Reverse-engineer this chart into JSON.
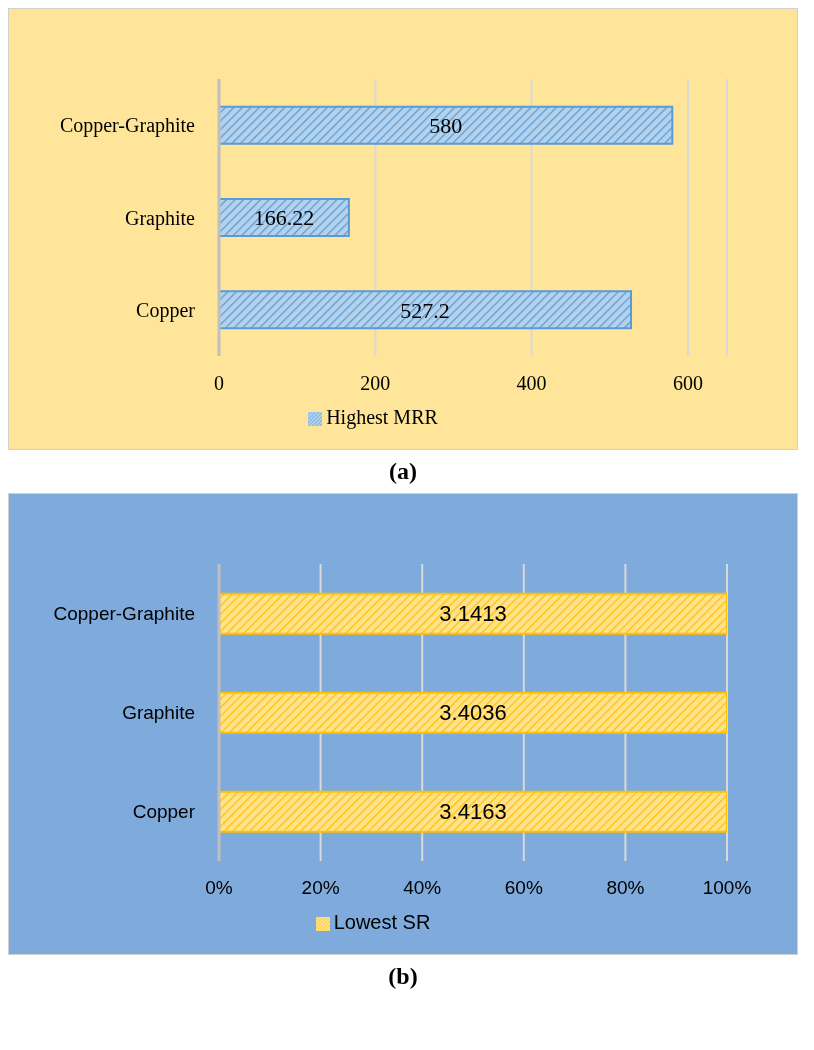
{
  "chart_data": [
    {
      "type": "bar",
      "orientation": "horizontal",
      "categories": [
        "Copper-Graphite",
        "Graphite",
        "Copper"
      ],
      "series": [
        {
          "name": "Highest MRR",
          "color": "#5b9bd5",
          "values": [
            580,
            166.22,
            527.2
          ]
        }
      ],
      "xlim": [
        0,
        650
      ],
      "xticks": [
        0,
        200,
        400,
        600
      ],
      "grid": "x",
      "legend": "bottom",
      "data_labels": true,
      "annotations": [
        "(a)"
      ]
    },
    {
      "type": "bar",
      "orientation": "horizontal",
      "categories": [
        "Copper-Graphite",
        "Graphite",
        "Copper"
      ],
      "series": [
        {
          "name": "Lowest SR",
          "color": "#ffc000",
          "values": [
            100,
            100,
            100
          ]
        }
      ],
      "xlim": [
        0,
        100
      ],
      "xticks": [
        {
          "value": 0,
          "label": "0%"
        },
        {
          "value": 20,
          "label": "20%"
        },
        {
          "value": 40,
          "label": "40%"
        },
        {
          "value": 60,
          "label": "60%"
        },
        {
          "value": 80,
          "label": "80%"
        },
        {
          "value": 100,
          "label": "100%"
        }
      ],
      "grid": "x",
      "legend": "bottom",
      "annotations": [
        "3.1413",
        "3.4036",
        "3.4163",
        "(b)"
      ]
    }
  ]
}
